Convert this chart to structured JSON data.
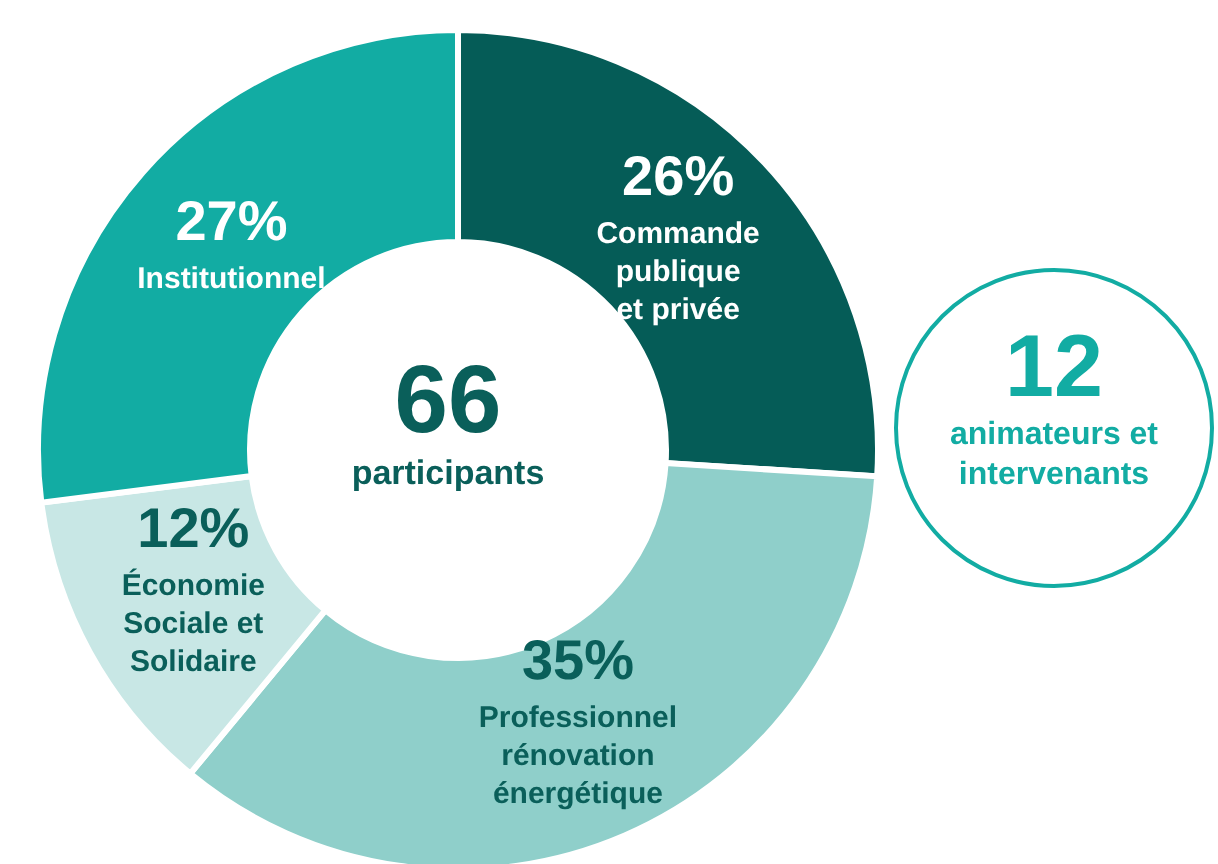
{
  "chart_data": {
    "type": "donut",
    "categories": [
      "Commande publique et privée",
      "Professionnel rénovation énergétique",
      "Économie Sociale et Solidaire",
      "Institutionnel"
    ],
    "values": [
      26,
      35,
      12,
      27
    ],
    "colors": [
      "#055c57",
      "#8fcfca",
      "#c8e7e5",
      "#12aca3"
    ],
    "value_labels": [
      "26%",
      "35%",
      "12%",
      "27%"
    ],
    "annotations": [
      "66",
      "participants",
      "12",
      "animateurs et intervenants"
    ]
  }
}
